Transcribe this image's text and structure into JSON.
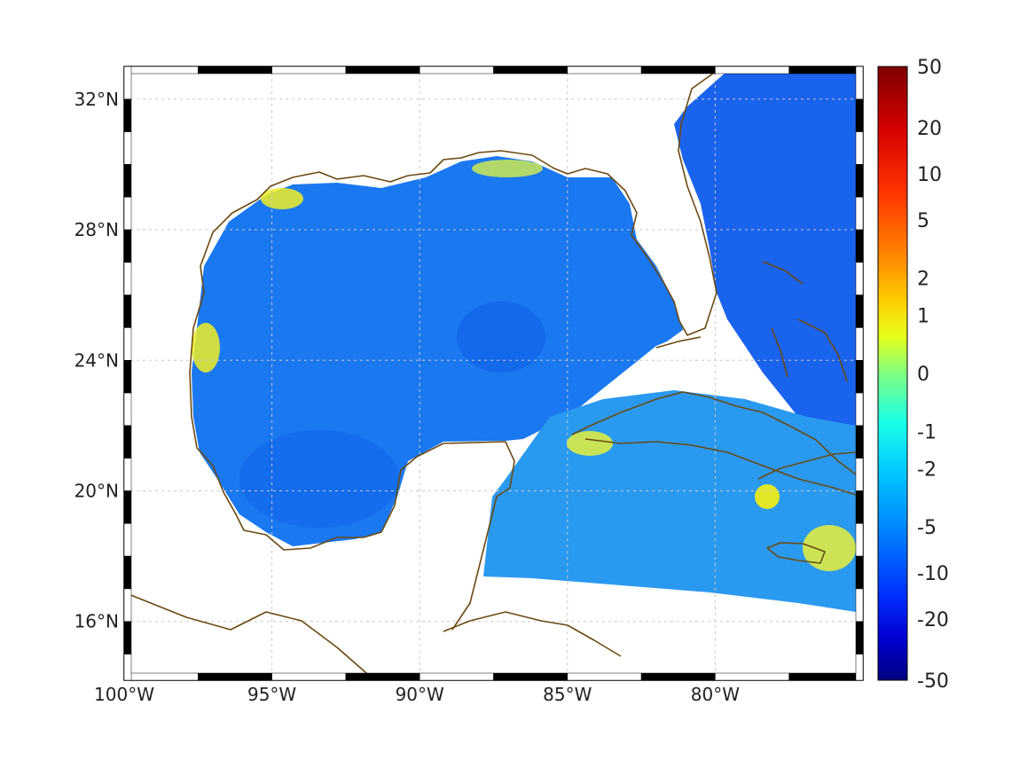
{
  "map": {
    "lon_labels": [
      "100°W",
      "95°W",
      "90°W",
      "85°W",
      "80°W"
    ],
    "lat_labels": [
      "32°N",
      "28°N",
      "24°N",
      "20°N",
      "16°N"
    ],
    "lon_values": [
      -100,
      -95,
      -90,
      -85,
      -80
    ],
    "lat_values": [
      32,
      28,
      24,
      20,
      16
    ],
    "lon_range": [
      -100,
      -75
    ],
    "lat_range": [
      14.2,
      33
    ],
    "grid": true,
    "coastline_color": "#6b4a12",
    "field_description": "gridded ocean field, mostly blue (negative), warmer patches near coasts and Caribbean"
  },
  "colorbar": {
    "labels": [
      "50",
      "20",
      "10",
      "5",
      "2",
      "1",
      "0",
      "-1",
      "-2",
      "-5",
      "-10",
      "-20",
      "-50"
    ],
    "colors": [
      "#7f0000",
      "#d40000",
      "#ff3000",
      "#ff7f00",
      "#ffcc00",
      "#e6ff19",
      "#80ff7f",
      "#19ffe6",
      "#00c8ff",
      "#0080ff",
      "#0030ff",
      "#0000d4",
      "#00007f"
    ]
  }
}
